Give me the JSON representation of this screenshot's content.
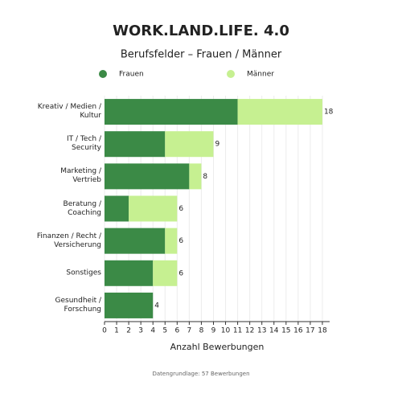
{
  "chart_data": {
    "type": "stacked-bar-horizontal",
    "title": "WORK.LAND.LIFE. 4.0",
    "subtitle": "Berufsfelder – Frauen / Männer",
    "categories": [
      "Kreativ / Medien /\nKultur",
      "IT / Tech /\nSecurity",
      "Marketing /\nVertrieb",
      "Beratung /\nCoaching",
      "Finanzen / Recht /\nVersicherung",
      "Sonstiges",
      "Gesundheit /\nForschung"
    ],
    "series": [
      {
        "name": "Frauen",
        "color": "#3b8a46",
        "values": [
          11,
          5,
          7,
          2,
          5,
          4,
          4
        ]
      },
      {
        "name": "Männer",
        "color": "#c6f091",
        "values": [
          7,
          4,
          1,
          4,
          1,
          2,
          0
        ]
      }
    ],
    "totals": [
      18,
      9,
      8,
      6,
      6,
      6,
      4
    ],
    "xlabel": "Anzahl Bewerbungen",
    "xlim": [
      0,
      18.6
    ],
    "xticks": [
      0,
      1,
      2,
      3,
      4,
      5,
      6,
      7,
      8,
      9,
      10,
      11,
      12,
      13,
      14,
      15,
      16,
      17,
      18
    ],
    "grid": true,
    "legend": "top",
    "footnote": "Datengrundlage: 57 Bewerbungen"
  }
}
